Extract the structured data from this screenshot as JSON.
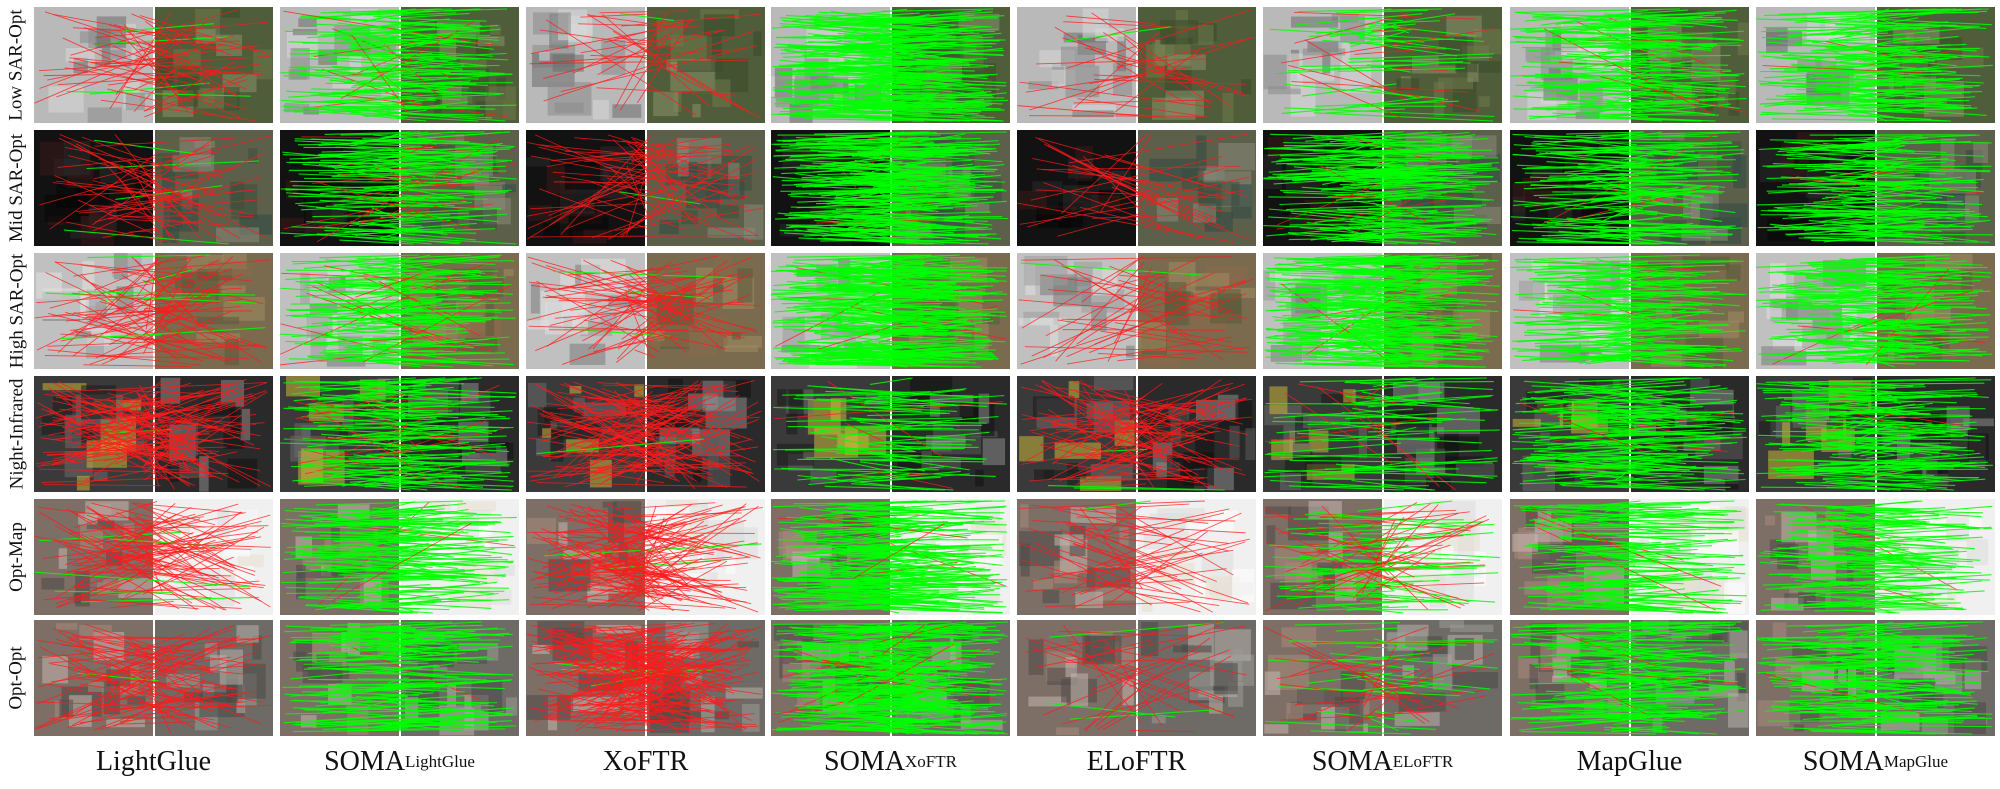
{
  "rows": [
    {
      "label": "Low SAR-Opt",
      "pair": [
        "sar",
        "rural"
      ]
    },
    {
      "label": "Mid SAR-Opt",
      "pair": [
        "sardark",
        "field"
      ]
    },
    {
      "label": "High SAR-Opt",
      "pair": [
        "sarwarp",
        "orange"
      ]
    },
    {
      "label": "Night-Infrared",
      "pair": [
        "infra",
        "night"
      ]
    },
    {
      "label": "Opt-Map",
      "pair": [
        "aerial",
        "map"
      ]
    },
    {
      "label": "Opt-Opt",
      "pair": [
        "aerial",
        "aerial2"
      ]
    }
  ],
  "columns": [
    {
      "main": "LightGlue",
      "sub": ""
    },
    {
      "main": "SOMA",
      "sub": "LightGlue"
    },
    {
      "main": "XoFTR",
      "sub": ""
    },
    {
      "main": "SOMA",
      "sub": "XoFTR"
    },
    {
      "main": "ELoFTR",
      "sub": ""
    },
    {
      "main": "SOMA",
      "sub": "ELoFTR"
    },
    {
      "main": "MapGlue",
      "sub": ""
    },
    {
      "main": "SOMA",
      "sub": "MapGlue"
    }
  ],
  "colors": {
    "correct_match": "#00ff00",
    "wrong_match": "#ff1a1a",
    "divider": "#ffffff"
  },
  "match_quality": [
    [
      0.05,
      0.92,
      0.12,
      1.0,
      0.08,
      0.8,
      0.97,
      0.97
    ],
    [
      0.05,
      0.9,
      0.03,
      0.96,
      0.05,
      0.97,
      0.97,
      0.97
    ],
    [
      0.06,
      0.93,
      0.04,
      0.98,
      0.04,
      0.99,
      0.97,
      0.97
    ],
    [
      0.03,
      0.9,
      0.03,
      0.9,
      0.03,
      0.85,
      0.97,
      0.97
    ],
    [
      0.02,
      0.95,
      0.02,
      0.97,
      0.06,
      0.6,
      0.98,
      0.98
    ],
    [
      0.04,
      0.97,
      0.01,
      0.95,
      0.04,
      0.4,
      0.98,
      0.98
    ]
  ],
  "match_density": [
    [
      0.35,
      0.9,
      0.2,
      1.6,
      0.2,
      0.35,
      0.9,
      0.9
    ],
    [
      0.35,
      0.9,
      0.35,
      1.6,
      0.2,
      1.1,
      0.9,
      0.9
    ],
    [
      0.5,
      0.9,
      0.4,
      1.6,
      0.25,
      1.4,
      0.9,
      0.9
    ],
    [
      0.7,
      0.9,
      0.7,
      0.5,
      0.5,
      0.4,
      0.9,
      0.9
    ],
    [
      0.6,
      0.9,
      0.8,
      1.4,
      0.3,
      0.6,
      0.8,
      0.8
    ],
    [
      0.5,
      0.9,
      1.2,
      1.6,
      0.2,
      0.3,
      0.9,
      0.9
    ]
  ]
}
